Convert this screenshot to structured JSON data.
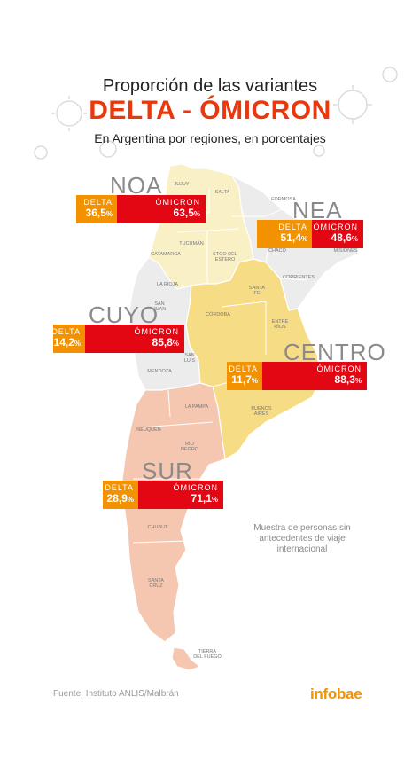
{
  "title_line1": "Proporción de las variantes",
  "title_line2": "DELTA - ÓMICRON",
  "subtitle": "En Argentina por regiones, en porcentajes",
  "regions": {
    "noa": {
      "name": "NOA",
      "delta_label": "DELTA",
      "delta_value": "36,5",
      "omicron_label": "ÓMICRON",
      "omicron_value": "63,5",
      "unit": "%",
      "color": "#faf0c6"
    },
    "nea": {
      "name": "NEA",
      "delta_label": "DELTA",
      "delta_value": "51,4",
      "omicron_label": "ÓMICRON",
      "omicron_value": "48,6",
      "unit": "%",
      "color": "#ececec"
    },
    "cuyo": {
      "name": "CUYO",
      "delta_label": "DELTA",
      "delta_value": "14,2",
      "omicron_label": "ÓMICRON",
      "omicron_value": "85,8",
      "unit": "%",
      "color": "#ececec"
    },
    "centro": {
      "name": "CENTRO",
      "delta_label": "DELTA",
      "delta_value": "11,7",
      "omicron_label": "ÓMICRON",
      "omicron_value": "88,3",
      "unit": "%",
      "color": "#f7dc86"
    },
    "sur": {
      "name": "SUR",
      "delta_label": "DELTA",
      "delta_value": "28,9",
      "omicron_label": "ÓMICRON",
      "omicron_value": "71,1",
      "unit": "%",
      "color": "#f6c7b0"
    }
  },
  "provinces": {
    "jujuy": "JUJUY",
    "salta": "SALTA",
    "formosa": "FORMOSA",
    "tucuman": "TUCUMÁN",
    "catamarca": "CATAMARCA",
    "stgo_line1": "STGO DEL",
    "stgo_line2": "ESTERO",
    "chaco": "CHACO",
    "misiones": "MISIONES",
    "corrientes": "CORRIENTES",
    "larioja": "LA RIOJA",
    "santafe_line1": "SANTA",
    "santafe_line2": "FE",
    "entrerios_line1": "ENTRE",
    "entrerios_line2": "RÍOS",
    "sanjuan_line1": "SAN",
    "sanjuan_line2": "JUAN",
    "cordoba": "CÓRDOBA",
    "sanluis_line1": "SAN",
    "sanluis_line2": "LUIS",
    "mendoza": "MENDOZA",
    "buenosaires_line1": "BUENOS",
    "buenosaires_line2": "AIRES",
    "lapampa": "LA PAMPA",
    "neuquen": "NEUQUÉN",
    "rionegro_line1": "RÍO",
    "rionegro_line2": "NEGRO",
    "chubut": "CHUBUT",
    "santacruz_line1": "SANTA",
    "santacruz_line2": "CRUZ",
    "tierra_line1": "TIERRA",
    "tierra_line2": "DEL FUEGO"
  },
  "note": "Muestra de personas sin antecedentes de viaje internacional",
  "source": "Fuente: Instituto ANLIS/Malbrán",
  "brand": "infobae",
  "colors": {
    "delta": "#f39200",
    "omicron": "#e30613",
    "title_accent": "#e8380d"
  }
}
